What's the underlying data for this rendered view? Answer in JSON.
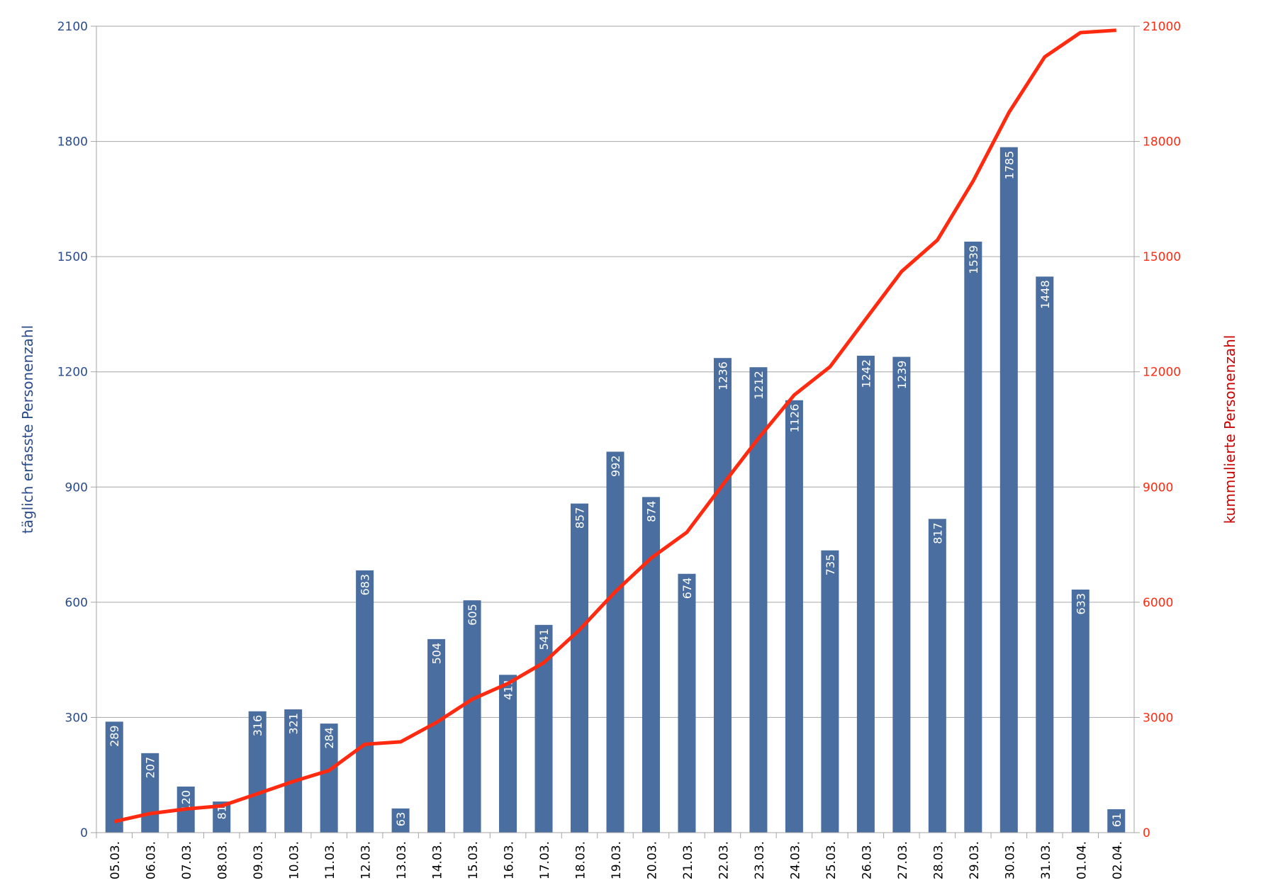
{
  "chart_data": {
    "type": "bar",
    "title": "",
    "categories": [
      "05.03.",
      "06.03.",
      "07.03.",
      "08.03.",
      "09.03.",
      "10.03.",
      "11.03.",
      "12.03.",
      "13.03.",
      "14.03.",
      "15.03.",
      "16.03.",
      "17.03.",
      "18.03.",
      "19.03.",
      "20.03.",
      "21.03.",
      "22.03.",
      "23.03.",
      "24.03.",
      "25.03.",
      "26.03.",
      "27.03.",
      "28.03.",
      "29.03.",
      "30.03.",
      "31.03.",
      "01.04.",
      "02.04."
    ],
    "series": [
      {
        "name": "täglich erfasste Personenzahl",
        "type": "bar",
        "axis": "left",
        "values": [
          289,
          207,
          120,
          81,
          316,
          321,
          284,
          683,
          63,
          504,
          605,
          411,
          541,
          857,
          992,
          874,
          674,
          1236,
          1212,
          1126,
          735,
          1242,
          1239,
          817,
          1539,
          1785,
          1448,
          633,
          61
        ]
      },
      {
        "name": "kummulierte Personenzahl",
        "type": "line",
        "axis": "right",
        "values": [
          289,
          496,
          616,
          697,
          1013,
          1334,
          1618,
          2301,
          2364,
          2868,
          3473,
          3884,
          4425,
          5282,
          6274,
          7148,
          7822,
          9058,
          10270,
          11396,
          12131,
          13373,
          14612,
          15429,
          16968,
          18753,
          20201,
          20834,
          20895
        ]
      }
    ],
    "ylabel": "täglich erfasste Personenzahl",
    "y2label": "kummulierte Personenzahl",
    "ylim": [
      0,
      2100
    ],
    "y2lim": [
      0,
      21000
    ],
    "yticks": [
      0,
      300,
      600,
      900,
      1200,
      1500,
      1800,
      2100
    ],
    "y2ticks": [
      0,
      3000,
      6000,
      9000,
      12000,
      15000,
      18000,
      21000
    ],
    "grid": true,
    "colors": {
      "bar": "#4A6E9F",
      "line": "#FF2A10",
      "left_axis": "#2A4C8C",
      "right_axis": "#FF2A10",
      "right_title": "#CC0000",
      "grid": "#A6A6A6"
    }
  }
}
